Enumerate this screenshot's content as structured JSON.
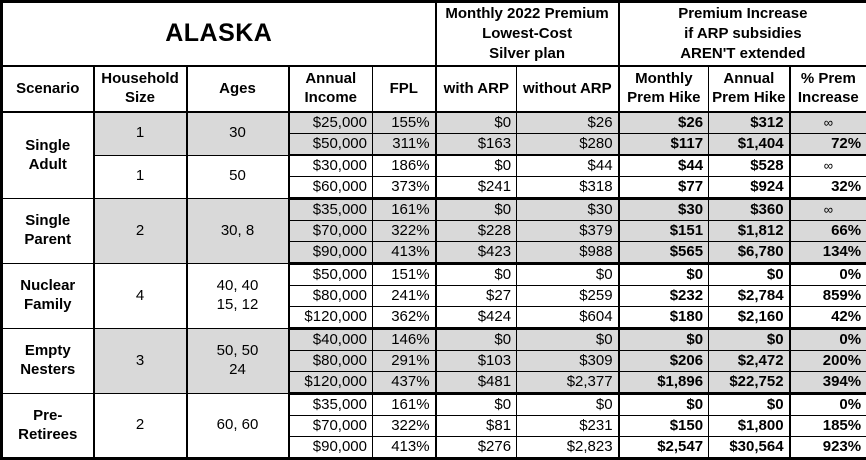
{
  "colors": {
    "shaded_row_bg": "#d9d9d9",
    "border": "#000000",
    "table_bg": "#ffffff",
    "text": "#000000"
  },
  "header": {
    "title": "ALASKA",
    "premium_group": "Monthly 2022 Premium\nLowest-Cost\nSilver plan",
    "increase_group": "Premium Increase\nif ARP subsidies\nAREN'T extended"
  },
  "columns": [
    "Scenario",
    "Household\nSize",
    "Ages",
    "Annual\nIncome",
    "FPL",
    "with ARP",
    "without ARP",
    "Monthly\nPrem Hike",
    "Annual\nPrem Hike",
    "% Prem\nIncrease"
  ],
  "table": {
    "groups": [
      {
        "scenario": "Single\nAdult",
        "subgroups": [
          {
            "household_size": "1",
            "ages": "30",
            "shaded": true,
            "rows": [
              {
                "income": "$25,000",
                "fpl": "155%",
                "with_arp": "$0",
                "without_arp": "$26",
                "monthly_hike": "$26",
                "annual_hike": "$312",
                "pct_increase": "∞"
              },
              {
                "income": "$50,000",
                "fpl": "311%",
                "with_arp": "$163",
                "without_arp": "$280",
                "monthly_hike": "$117",
                "annual_hike": "$1,404",
                "pct_increase": "72%"
              }
            ]
          },
          {
            "household_size": "1",
            "ages": "50",
            "shaded": false,
            "rows": [
              {
                "income": "$30,000",
                "fpl": "186%",
                "with_arp": "$0",
                "without_arp": "$44",
                "monthly_hike": "$44",
                "annual_hike": "$528",
                "pct_increase": "∞"
              },
              {
                "income": "$60,000",
                "fpl": "373%",
                "with_arp": "$241",
                "without_arp": "$318",
                "monthly_hike": "$77",
                "annual_hike": "$924",
                "pct_increase": "32%"
              }
            ]
          }
        ]
      },
      {
        "scenario": "Single\nParent",
        "subgroups": [
          {
            "household_size": "2",
            "ages": "30, 8",
            "shaded": true,
            "rows": [
              {
                "income": "$35,000",
                "fpl": "161%",
                "with_arp": "$0",
                "without_arp": "$30",
                "monthly_hike": "$30",
                "annual_hike": "$360",
                "pct_increase": "∞"
              },
              {
                "income": "$70,000",
                "fpl": "322%",
                "with_arp": "$228",
                "without_arp": "$379",
                "monthly_hike": "$151",
                "annual_hike": "$1,812",
                "pct_increase": "66%"
              },
              {
                "income": "$90,000",
                "fpl": "413%",
                "with_arp": "$423",
                "without_arp": "$988",
                "monthly_hike": "$565",
                "annual_hike": "$6,780",
                "pct_increase": "134%"
              }
            ]
          }
        ]
      },
      {
        "scenario": "Nuclear\nFamily",
        "subgroups": [
          {
            "household_size": "4",
            "ages": "40, 40\n15, 12",
            "shaded": false,
            "rows": [
              {
                "income": "$50,000",
                "fpl": "151%",
                "with_arp": "$0",
                "without_arp": "$0",
                "monthly_hike": "$0",
                "annual_hike": "$0",
                "pct_increase": "0%"
              },
              {
                "income": "$80,000",
                "fpl": "241%",
                "with_arp": "$27",
                "without_arp": "$259",
                "monthly_hike": "$232",
                "annual_hike": "$2,784",
                "pct_increase": "859%"
              },
              {
                "income": "$120,000",
                "fpl": "362%",
                "with_arp": "$424",
                "without_arp": "$604",
                "monthly_hike": "$180",
                "annual_hike": "$2,160",
                "pct_increase": "42%"
              }
            ]
          }
        ]
      },
      {
        "scenario": "Empty\nNesters",
        "subgroups": [
          {
            "household_size": "3",
            "ages": "50, 50\n24",
            "shaded": true,
            "rows": [
              {
                "income": "$40,000",
                "fpl": "146%",
                "with_arp": "$0",
                "without_arp": "$0",
                "monthly_hike": "$0",
                "annual_hike": "$0",
                "pct_increase": "0%"
              },
              {
                "income": "$80,000",
                "fpl": "291%",
                "with_arp": "$103",
                "without_arp": "$309",
                "monthly_hike": "$206",
                "annual_hike": "$2,472",
                "pct_increase": "200%"
              },
              {
                "income": "$120,000",
                "fpl": "437%",
                "with_arp": "$481",
                "without_arp": "$2,377",
                "monthly_hike": "$1,896",
                "annual_hike": "$22,752",
                "pct_increase": "394%"
              }
            ]
          }
        ]
      },
      {
        "scenario": "Pre-\nRetirees",
        "subgroups": [
          {
            "household_size": "2",
            "ages": "60, 60",
            "shaded": false,
            "rows": [
              {
                "income": "$35,000",
                "fpl": "161%",
                "with_arp": "$0",
                "without_arp": "$0",
                "monthly_hike": "$0",
                "annual_hike": "$0",
                "pct_increase": "0%"
              },
              {
                "income": "$70,000",
                "fpl": "322%",
                "with_arp": "$81",
                "without_arp": "$231",
                "monthly_hike": "$150",
                "annual_hike": "$1,800",
                "pct_increase": "185%"
              },
              {
                "income": "$90,000",
                "fpl": "413%",
                "with_arp": "$276",
                "without_arp": "$2,823",
                "monthly_hike": "$2,547",
                "annual_hike": "$30,564",
                "pct_increase": "923%"
              }
            ]
          }
        ]
      }
    ]
  },
  "chart_data": {
    "type": "table",
    "title": "ALASKA",
    "section_headers": [
      "Monthly 2022 Premium Lowest-Cost Silver plan",
      "Premium Increase if ARP subsidies AREN'T extended"
    ],
    "column_headers": [
      "Scenario",
      "Household Size",
      "Ages",
      "Annual Income",
      "FPL",
      "with ARP",
      "without ARP",
      "Monthly Prem Hike",
      "Annual Prem Hike",
      "% Prem Increase"
    ],
    "rows": [
      [
        "Single Adult",
        "1",
        "30",
        "$25,000",
        "155%",
        "$0",
        "$26",
        "$26",
        "$312",
        "∞"
      ],
      [
        "Single Adult",
        "1",
        "30",
        "$50,000",
        "311%",
        "$163",
        "$280",
        "$117",
        "$1,404",
        "72%"
      ],
      [
        "Single Adult",
        "1",
        "50",
        "$30,000",
        "186%",
        "$0",
        "$44",
        "$44",
        "$528",
        "∞"
      ],
      [
        "Single Adult",
        "1",
        "50",
        "$60,000",
        "373%",
        "$241",
        "$318",
        "$77",
        "$924",
        "32%"
      ],
      [
        "Single Parent",
        "2",
        "30, 8",
        "$35,000",
        "161%",
        "$0",
        "$30",
        "$30",
        "$360",
        "∞"
      ],
      [
        "Single Parent",
        "2",
        "30, 8",
        "$70,000",
        "322%",
        "$228",
        "$379",
        "$151",
        "$1,812",
        "66%"
      ],
      [
        "Single Parent",
        "2",
        "30, 8",
        "$90,000",
        "413%",
        "$423",
        "$988",
        "$565",
        "$6,780",
        "134%"
      ],
      [
        "Nuclear Family",
        "4",
        "40, 40, 15, 12",
        "$50,000",
        "151%",
        "$0",
        "$0",
        "$0",
        "$0",
        "0%"
      ],
      [
        "Nuclear Family",
        "4",
        "40, 40, 15, 12",
        "$80,000",
        "241%",
        "$27",
        "$259",
        "$232",
        "$2,784",
        "859%"
      ],
      [
        "Nuclear Family",
        "4",
        "40, 40, 15, 12",
        "$120,000",
        "362%",
        "$424",
        "$604",
        "$180",
        "$2,160",
        "42%"
      ],
      [
        "Empty Nesters",
        "3",
        "50, 50, 24",
        "$40,000",
        "146%",
        "$0",
        "$0",
        "$0",
        "$0",
        "0%"
      ],
      [
        "Empty Nesters",
        "3",
        "50, 50, 24",
        "$80,000",
        "291%",
        "$103",
        "$309",
        "$206",
        "$2,472",
        "200%"
      ],
      [
        "Empty Nesters",
        "3",
        "50, 50, 24",
        "$120,000",
        "437%",
        "$481",
        "$2,377",
        "$1,896",
        "$22,752",
        "394%"
      ],
      [
        "Pre-Retirees",
        "2",
        "60, 60",
        "$35,000",
        "161%",
        "$0",
        "$0",
        "$0",
        "$0",
        "0%"
      ],
      [
        "Pre-Retirees",
        "2",
        "60, 60",
        "$70,000",
        "322%",
        "$81",
        "$231",
        "$150",
        "$1,800",
        "185%"
      ],
      [
        "Pre-Retirees",
        "2",
        "60, 60",
        "$90,000",
        "413%",
        "$276",
        "$2,823",
        "$2,547",
        "$30,564",
        "923%"
      ]
    ]
  }
}
